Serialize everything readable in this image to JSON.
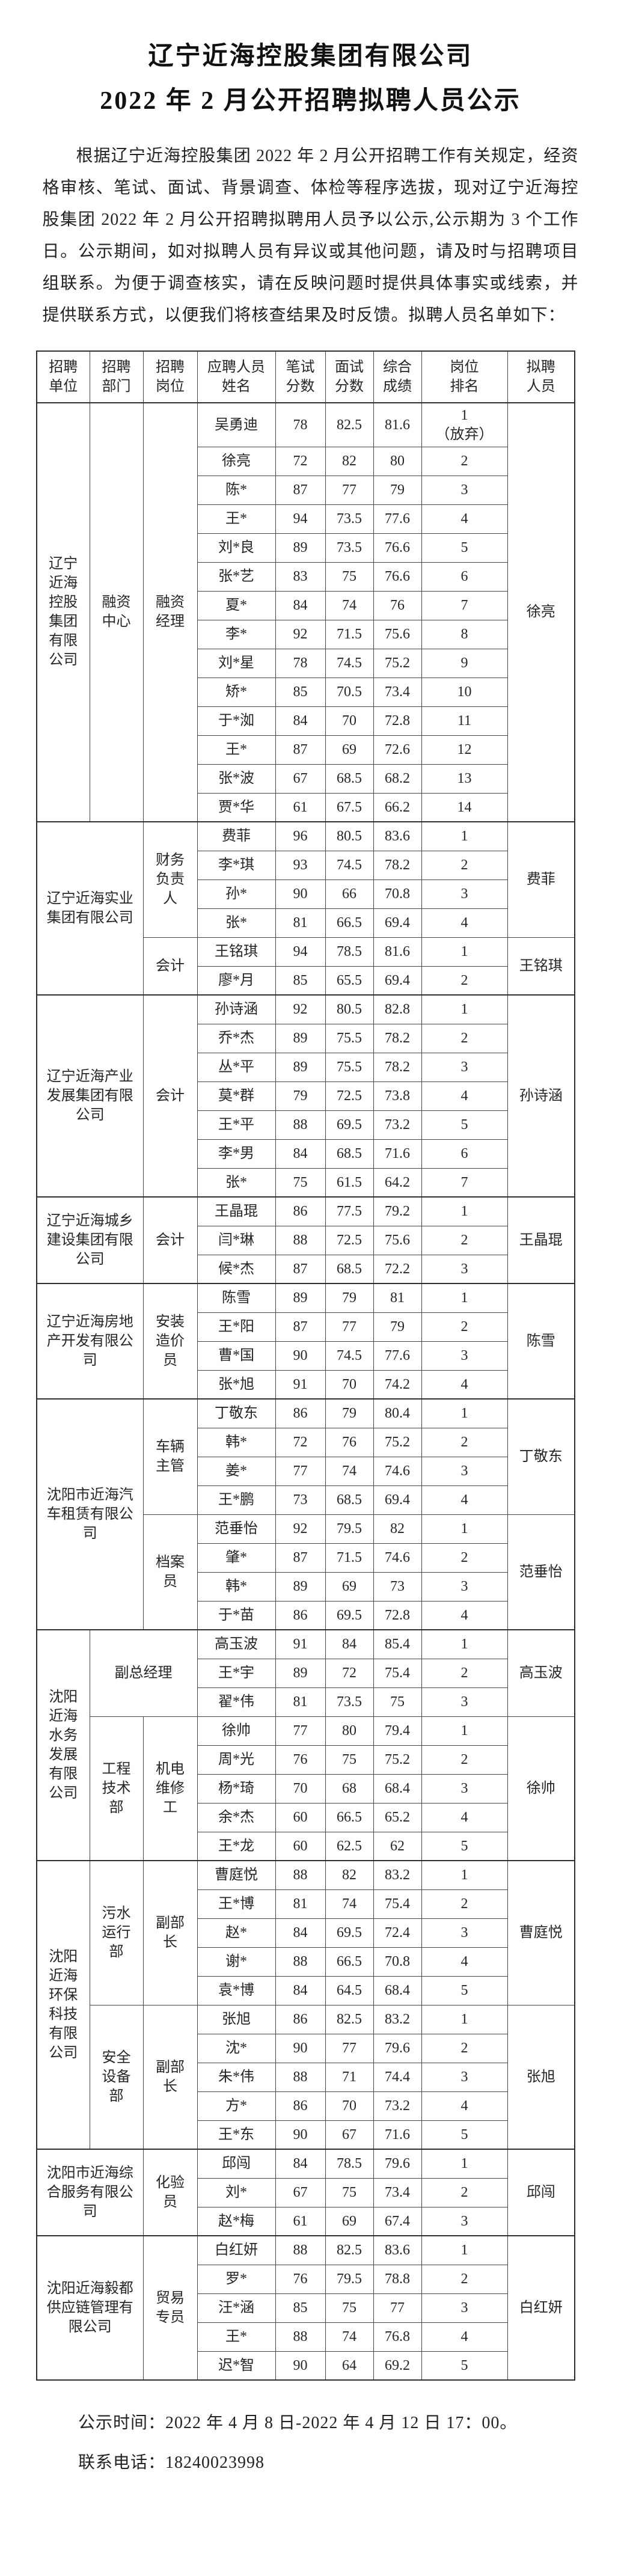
{
  "page": {
    "title_line1": "辽宁近海控股集团有限公司",
    "title_line2": "2022 年 2 月公开招聘拟聘人员公示",
    "intro": "根据辽宁近海控股集团 2022 年 2 月公开招聘工作有关规定，经资格审核、笔试、面试、背景调查、体检等程序选拔，现对辽宁近海控股集团 2022 年 2 月公开招聘拟聘用人员予以公示,公示期为 3 个工作日。公示期间，如对拟聘人员有异议或其他问题，请及时与招聘项目组联系。为便于调查核实，请在反映问题时提供具体事实或线索，并提供联系方式，以便我们将核查结果及时反馈。拟聘人员名单如下：",
    "footer_time": "公示时间：2022 年 4 月 8 日-2022 年 4 月 12 日 17：00。",
    "footer_phone": "联系电话：18240023998"
  },
  "table": {
    "headers": [
      "招聘\n单位",
      "招聘\n部门",
      "招聘\n岗位",
      "应聘人员\n姓名",
      "笔试\n分数",
      "面试\n分数",
      "综合\n成绩",
      "岗位\n排名",
      "拟聘\n人员"
    ],
    "groups": [
      {
        "company": "辽宁\n近海\n控股\n集团\n有限\n公司",
        "colspan": 1,
        "positions": [
          {
            "dept": "融资\n中心",
            "title": "融资\n经理",
            "span2": false,
            "hire": "徐亮",
            "candidates": [
              {
                "name": "吴勇迪",
                "written": "78",
                "interview": "82.5",
                "total": "81.6",
                "rank": "1",
                "note": "（放弃）"
              },
              {
                "name": "徐亮",
                "written": "72",
                "interview": "82",
                "total": "80",
                "rank": "2"
              },
              {
                "name": "陈*",
                "written": "87",
                "interview": "77",
                "total": "79",
                "rank": "3"
              },
              {
                "name": "王*",
                "written": "94",
                "interview": "73.5",
                "total": "77.6",
                "rank": "4"
              },
              {
                "name": "刘*良",
                "written": "89",
                "interview": "73.5",
                "total": "76.6",
                "rank": "5"
              },
              {
                "name": "张*艺",
                "written": "83",
                "interview": "75",
                "total": "76.6",
                "rank": "6"
              },
              {
                "name": "夏*",
                "written": "84",
                "interview": "74",
                "total": "76",
                "rank": "7"
              },
              {
                "name": "李*",
                "written": "92",
                "interview": "71.5",
                "total": "75.6",
                "rank": "8"
              },
              {
                "name": "刘*星",
                "written": "78",
                "interview": "74.5",
                "total": "75.2",
                "rank": "9"
              },
              {
                "name": "矫*",
                "written": "85",
                "interview": "70.5",
                "total": "73.4",
                "rank": "10"
              },
              {
                "name": "于*洳",
                "written": "84",
                "interview": "70",
                "total": "72.8",
                "rank": "11"
              },
              {
                "name": "王*",
                "written": "87",
                "interview": "69",
                "total": "72.6",
                "rank": "12"
              },
              {
                "name": "张*波",
                "written": "67",
                "interview": "68.5",
                "total": "68.2",
                "rank": "13"
              },
              {
                "name": "贾*华",
                "written": "61",
                "interview": "67.5",
                "total": "66.2",
                "rank": "14"
              }
            ]
          }
        ]
      },
      {
        "company": "辽宁近海实业\n集团有限公司",
        "colspan": 2,
        "positions": [
          {
            "dept": null,
            "title": "财务\n负责\n人",
            "span2": false,
            "hire": "费菲",
            "candidates": [
              {
                "name": "费菲",
                "written": "96",
                "interview": "80.5",
                "total": "83.6",
                "rank": "1"
              },
              {
                "name": "李*琪",
                "written": "93",
                "interview": "74.5",
                "total": "78.2",
                "rank": "2"
              },
              {
                "name": "孙*",
                "written": "90",
                "interview": "66",
                "total": "70.8",
                "rank": "3"
              },
              {
                "name": "张*",
                "written": "81",
                "interview": "66.5",
                "total": "69.4",
                "rank": "4"
              }
            ]
          },
          {
            "dept": null,
            "title": "会计",
            "span2": false,
            "hire": "王铭琪",
            "candidates": [
              {
                "name": "王铭琪",
                "written": "94",
                "interview": "78.5",
                "total": "81.6",
                "rank": "1"
              },
              {
                "name": "廖*月",
                "written": "85",
                "interview": "65.5",
                "total": "69.4",
                "rank": "2"
              }
            ]
          }
        ]
      },
      {
        "company": "辽宁近海产业\n发展集团有限\n公司",
        "colspan": 2,
        "positions": [
          {
            "dept": null,
            "title": "会计",
            "span2": false,
            "hire": "孙诗涵",
            "candidates": [
              {
                "name": "孙诗涵",
                "written": "92",
                "interview": "80.5",
                "total": "82.8",
                "rank": "1"
              },
              {
                "name": "乔*杰",
                "written": "89",
                "interview": "75.5",
                "total": "78.2",
                "rank": "2"
              },
              {
                "name": "丛*平",
                "written": "89",
                "interview": "75.5",
                "total": "78.2",
                "rank": "3"
              },
              {
                "name": "莫*群",
                "written": "79",
                "interview": "72.5",
                "total": "73.8",
                "rank": "4"
              },
              {
                "name": "王*平",
                "written": "88",
                "interview": "69.5",
                "total": "73.2",
                "rank": "5"
              },
              {
                "name": "李*男",
                "written": "84",
                "interview": "68.5",
                "total": "71.6",
                "rank": "6"
              },
              {
                "name": "张*",
                "written": "75",
                "interview": "61.5",
                "total": "64.2",
                "rank": "7"
              }
            ]
          }
        ]
      },
      {
        "company": "辽宁近海城乡\n建设集团有限\n公司",
        "colspan": 2,
        "positions": [
          {
            "dept": null,
            "title": "会计",
            "span2": false,
            "hire": "王晶琨",
            "candidates": [
              {
                "name": "王晶琨",
                "written": "86",
                "interview": "77.5",
                "total": "79.2",
                "rank": "1"
              },
              {
                "name": "闫*琳",
                "written": "88",
                "interview": "72.5",
                "total": "75.6",
                "rank": "2"
              },
              {
                "name": "候*杰",
                "written": "87",
                "interview": "68.5",
                "total": "72.2",
                "rank": "3"
              }
            ]
          }
        ]
      },
      {
        "company": "辽宁近海房地\n产开发有限公\n司",
        "colspan": 2,
        "positions": [
          {
            "dept": null,
            "title": "安装\n造价\n员",
            "span2": false,
            "hire": "陈雪",
            "candidates": [
              {
                "name": "陈雪",
                "written": "89",
                "interview": "79",
                "total": "81",
                "rank": "1"
              },
              {
                "name": "王*阳",
                "written": "87",
                "interview": "77",
                "total": "79",
                "rank": "2"
              },
              {
                "name": "曹*国",
                "written": "90",
                "interview": "74.5",
                "total": "77.6",
                "rank": "3"
              },
              {
                "name": "张*旭",
                "written": "91",
                "interview": "70",
                "total": "74.2",
                "rank": "4"
              }
            ]
          }
        ]
      },
      {
        "company": "沈阳市近海汽\n车租赁有限公\n司",
        "colspan": 2,
        "positions": [
          {
            "dept": null,
            "title": "车辆\n主管",
            "span2": false,
            "hire": "丁敬东",
            "candidates": [
              {
                "name": "丁敬东",
                "written": "86",
                "interview": "79",
                "total": "80.4",
                "rank": "1"
              },
              {
                "name": "韩*",
                "written": "72",
                "interview": "76",
                "total": "75.2",
                "rank": "2"
              },
              {
                "name": "姜*",
                "written": "77",
                "interview": "74",
                "total": "74.6",
                "rank": "3"
              },
              {
                "name": "王*鹏",
                "written": "73",
                "interview": "68.5",
                "total": "69.4",
                "rank": "4"
              }
            ]
          },
          {
            "dept": null,
            "title": "档案\n员",
            "span2": false,
            "hire": "范垂怡",
            "candidates": [
              {
                "name": "范垂怡",
                "written": "92",
                "interview": "79.5",
                "total": "82",
                "rank": "1"
              },
              {
                "name": "肇*",
                "written": "87",
                "interview": "71.5",
                "total": "74.6",
                "rank": "2"
              },
              {
                "name": "韩*",
                "written": "89",
                "interview": "69",
                "total": "73",
                "rank": "3"
              },
              {
                "name": "于*苗",
                "written": "86",
                "interview": "69.5",
                "total": "72.8",
                "rank": "4"
              }
            ]
          }
        ]
      },
      {
        "company": "沈阳\n近海\n水务\n发展\n有限\n公司",
        "colspan": 1,
        "positions": [
          {
            "dept": null,
            "title": "副总经理",
            "span2": true,
            "hire": "高玉波",
            "candidates": [
              {
                "name": "高玉波",
                "written": "91",
                "interview": "84",
                "total": "85.4",
                "rank": "1"
              },
              {
                "name": "王*宇",
                "written": "89",
                "interview": "72",
                "total": "75.4",
                "rank": "2"
              },
              {
                "name": "翟*伟",
                "written": "81",
                "interview": "73.5",
                "total": "75",
                "rank": "3"
              }
            ]
          },
          {
            "dept": "工程\n技术\n部",
            "title": "机电\n维修\n工",
            "span2": false,
            "hire": "徐帅",
            "candidates": [
              {
                "name": "徐帅",
                "written": "77",
                "interview": "80",
                "total": "79.4",
                "rank": "1"
              },
              {
                "name": "周*光",
                "written": "76",
                "interview": "75",
                "total": "75.2",
                "rank": "2"
              },
              {
                "name": "杨*琦",
                "written": "70",
                "interview": "68",
                "total": "68.4",
                "rank": "3"
              },
              {
                "name": "余*杰",
                "written": "60",
                "interview": "66.5",
                "total": "65.2",
                "rank": "4"
              },
              {
                "name": "王*龙",
                "written": "60",
                "interview": "62.5",
                "total": "62",
                "rank": "5"
              }
            ]
          }
        ]
      },
      {
        "company": "沈阳\n近海\n环保\n科技\n有限\n公司",
        "colspan": 1,
        "positions": [
          {
            "dept": "污水\n运行\n部",
            "title": "副部\n长",
            "span2": false,
            "hire": "曹庭悦",
            "candidates": [
              {
                "name": "曹庭悦",
                "written": "88",
                "interview": "82",
                "total": "83.2",
                "rank": "1"
              },
              {
                "name": "王*博",
                "written": "81",
                "interview": "74",
                "total": "75.4",
                "rank": "2"
              },
              {
                "name": "赵*",
                "written": "84",
                "interview": "69.5",
                "total": "72.4",
                "rank": "3"
              },
              {
                "name": "谢*",
                "written": "88",
                "interview": "66.5",
                "total": "70.8",
                "rank": "4"
              },
              {
                "name": "袁*博",
                "written": "84",
                "interview": "64.5",
                "total": "68.4",
                "rank": "5"
              }
            ]
          },
          {
            "dept": "安全\n设备\n部",
            "title": "副部\n长",
            "span2": false,
            "hire": "张旭",
            "candidates": [
              {
                "name": "张旭",
                "written": "86",
                "interview": "82.5",
                "total": "83.2",
                "rank": "1"
              },
              {
                "name": "沈*",
                "written": "90",
                "interview": "77",
                "total": "79.6",
                "rank": "2"
              },
              {
                "name": "朱*伟",
                "written": "88",
                "interview": "71",
                "total": "74.4",
                "rank": "3"
              },
              {
                "name": "方*",
                "written": "86",
                "interview": "70",
                "total": "73.2",
                "rank": "4"
              },
              {
                "name": "王*东",
                "written": "90",
                "interview": "67",
                "total": "71.6",
                "rank": "5"
              }
            ]
          }
        ]
      },
      {
        "company": "沈阳市近海综\n合服务有限公\n司",
        "colspan": 2,
        "positions": [
          {
            "dept": null,
            "title": "化验\n员",
            "span2": false,
            "hire": "邱闯",
            "candidates": [
              {
                "name": "邱闯",
                "written": "84",
                "interview": "78.5",
                "total": "79.6",
                "rank": "1"
              },
              {
                "name": "刘*",
                "written": "67",
                "interview": "75",
                "total": "73.4",
                "rank": "2"
              },
              {
                "name": "赵*梅",
                "written": "61",
                "interview": "69",
                "total": "67.4",
                "rank": "3"
              }
            ]
          }
        ]
      },
      {
        "company": "沈阳近海毅都\n供应链管理有\n限公司",
        "colspan": 2,
        "positions": [
          {
            "dept": null,
            "title": "贸易\n专员",
            "span2": false,
            "hire": "白红妍",
            "candidates": [
              {
                "name": "白红妍",
                "written": "88",
                "interview": "82.5",
                "total": "83.6",
                "rank": "1"
              },
              {
                "name": "罗*",
                "written": "76",
                "interview": "79.5",
                "total": "78.8",
                "rank": "2"
              },
              {
                "name": "汪*涵",
                "written": "85",
                "interview": "75",
                "total": "77",
                "rank": "3"
              },
              {
                "name": "王*",
                "written": "88",
                "interview": "74",
                "total": "76.8",
                "rank": "4"
              },
              {
                "name": "迟*智",
                "written": "90",
                "interview": "64",
                "total": "69.2",
                "rank": "5"
              }
            ]
          }
        ]
      }
    ]
  }
}
